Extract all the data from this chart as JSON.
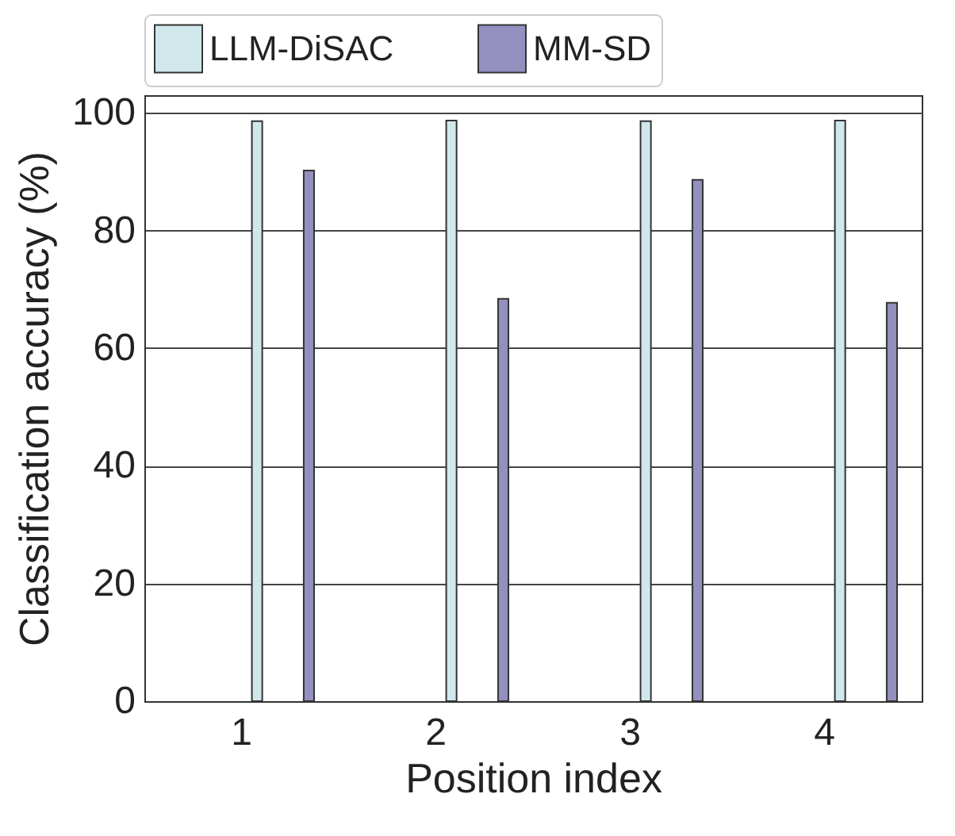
{
  "chart_data": {
    "type": "bar",
    "xlabel": "Position index",
    "ylabel": "Classification accuracy (%)",
    "categories": [
      "1",
      "2",
      "3",
      "4"
    ],
    "series": [
      {
        "name": "LLM-DiSAC",
        "color": "#d0e8ec",
        "values": [
          98.6,
          98.7,
          98.6,
          98.7
        ]
      },
      {
        "name": "MM-SD",
        "color": "#9390c0",
        "values": [
          90.2,
          68.4,
          88.6,
          67.7
        ]
      }
    ],
    "ylim": [
      0,
      103
    ],
    "yticks": [
      0,
      20,
      40,
      60,
      80,
      100
    ],
    "grid": "y",
    "legend": "top"
  }
}
